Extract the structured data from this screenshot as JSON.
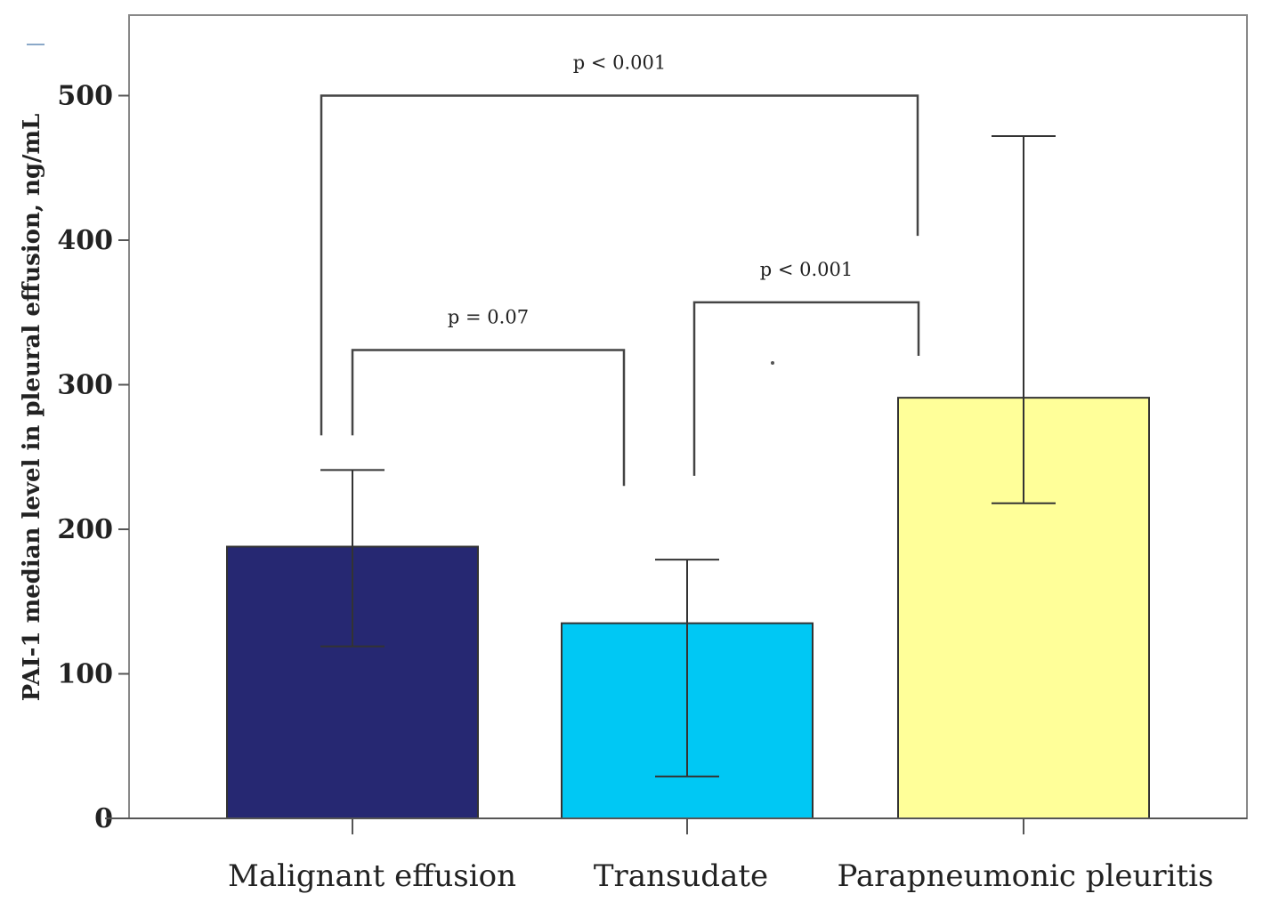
{
  "chart_data": {
    "type": "bar",
    "categories": [
      "Malignant effusion",
      "Transudate",
      "Parapneumonic pleuritis"
    ],
    "values": [
      188,
      135,
      291
    ],
    "error_low": [
      119,
      29,
      218
    ],
    "error_high": [
      241,
      179,
      472
    ],
    "colors": [
      "#262872",
      "#00c8f4",
      "#ffff99"
    ],
    "ylabel": "PAI-1 median level in pleural effusion, ng/mL",
    "ylim": [
      0,
      550
    ],
    "yticks": [
      0,
      100,
      200,
      300,
      400,
      500
    ],
    "grid": false,
    "annotations": [
      {
        "text": "p < 0.001",
        "from": 0,
        "to": 2,
        "level": 500,
        "left_end": 265,
        "right_end": 403
      },
      {
        "text": "p = 0.07",
        "from": 0,
        "to": 1,
        "level": 324,
        "left_end": 265,
        "right_end": 230
      },
      {
        "text": "p < 0.001",
        "from": 1,
        "to": 2,
        "level": 357,
        "left_end": 237,
        "right_end": 320
      }
    ]
  }
}
